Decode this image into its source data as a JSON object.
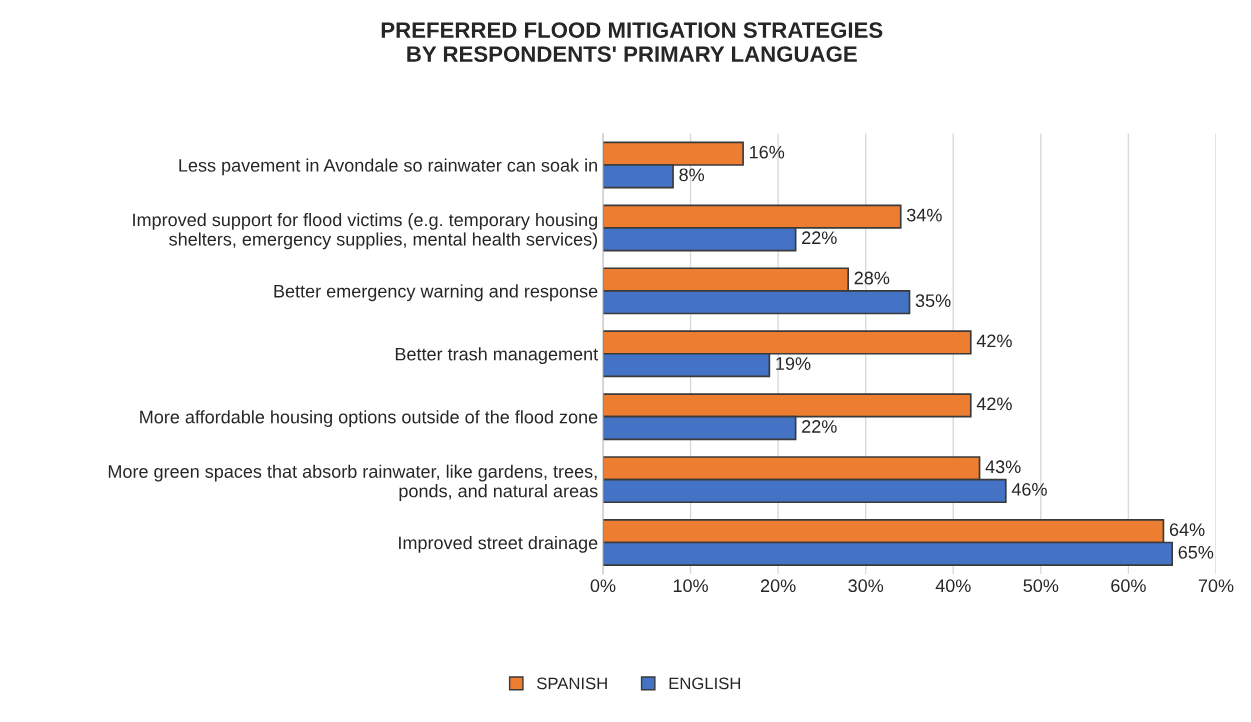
{
  "chart_data": {
    "type": "bar",
    "orientation": "horizontal",
    "title": "PREFERRED FLOOD MITIGATION STRATEGIES\nBY RESPONDENTS' PRIMARY LANGUAGE",
    "categories": [
      "Less pavement in Avondale so rainwater can soak in",
      "Improved support for flood victims (e.g. temporary housing\nshelters, emergency supplies, mental health services)",
      "Better emergency warning and response",
      "Better trash management",
      "More affordable housing options outside of the flood zone",
      "More green spaces that absorb rainwater, like gardens, trees,\nponds, and natural areas",
      "Improved street drainage"
    ],
    "series": [
      {
        "name": "SPANISH",
        "color": "#ed7d31",
        "values": [
          16,
          34,
          28,
          42,
          42,
          43,
          64
        ],
        "value_labels": [
          "16%",
          "34%",
          "28%",
          "42%",
          "42%",
          "43%",
          "64%"
        ]
      },
      {
        "name": "ENGLISH",
        "color": "#4472c4",
        "values": [
          8,
          22,
          35,
          19,
          22,
          46,
          65
        ],
        "value_labels": [
          "8%",
          "22%",
          "35%",
          "19%",
          "22%",
          "46%",
          "65%"
        ]
      }
    ],
    "xlim": [
      0,
      70
    ],
    "xticks": [
      {
        "value": 0,
        "label": "0%"
      },
      {
        "value": 10,
        "label": "10%"
      },
      {
        "value": 20,
        "label": "20%"
      },
      {
        "value": 30,
        "label": "30%"
      },
      {
        "value": 40,
        "label": "40%"
      },
      {
        "value": 50,
        "label": "50%"
      },
      {
        "value": 60,
        "label": "60%"
      },
      {
        "value": 70,
        "label": "70%"
      }
    ],
    "grid": "x",
    "legend": "bottom"
  }
}
